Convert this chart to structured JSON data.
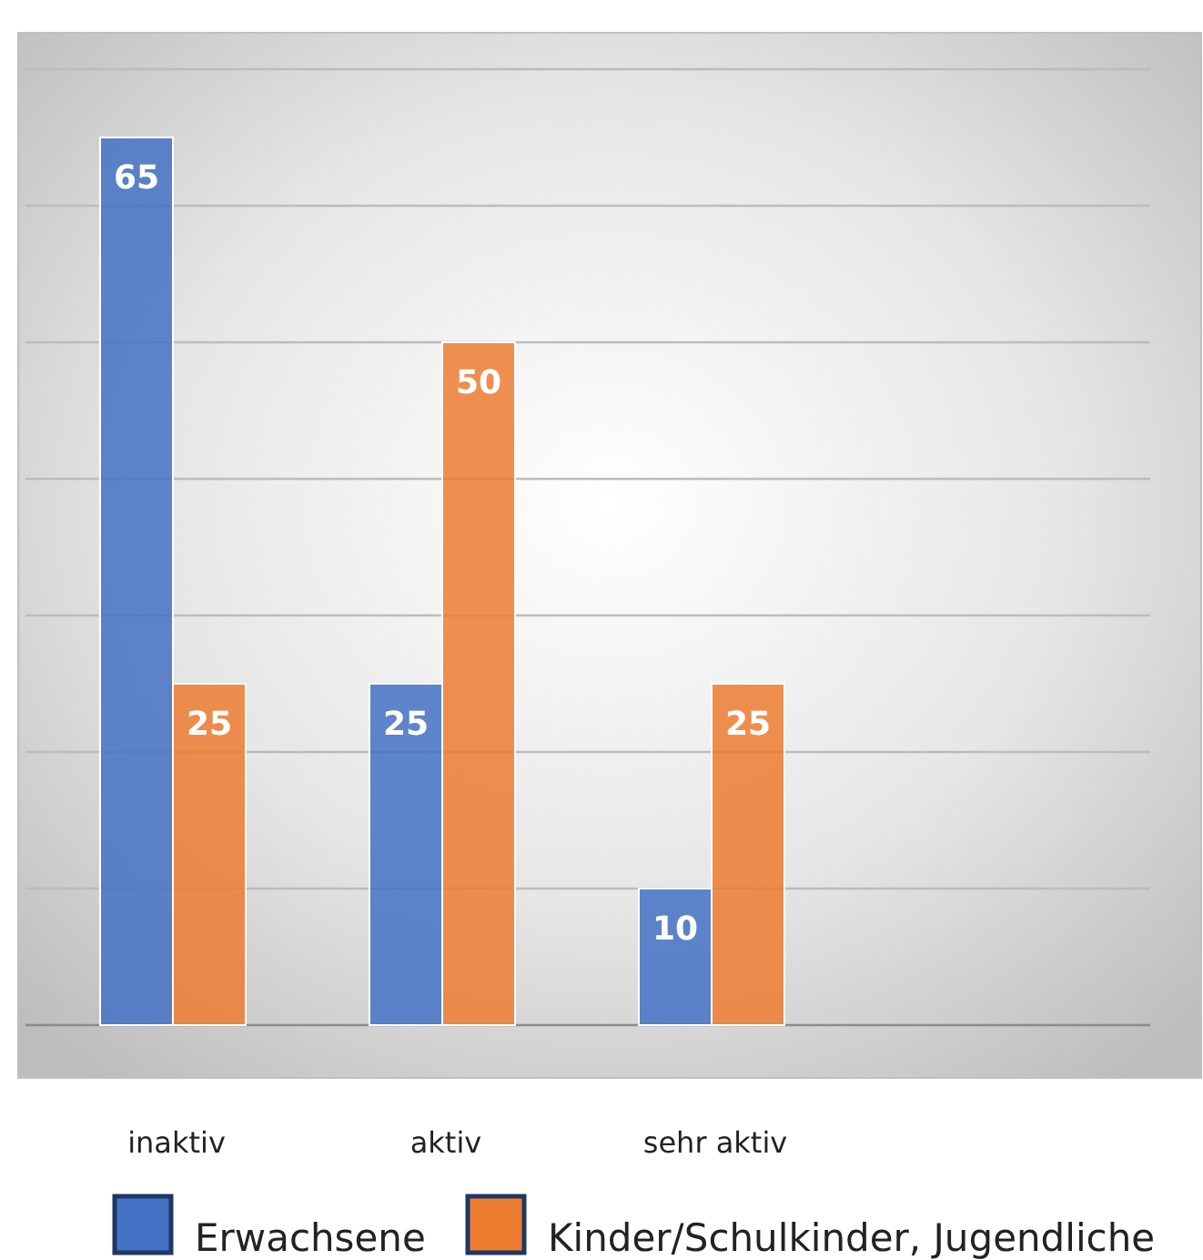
{
  "chart_data": {
    "type": "bar",
    "categories": [
      "inaktiv",
      "aktiv",
      "sehr aktiv",
      null
    ],
    "series": [
      {
        "name": "Erwachsene",
        "color": "#4472c4",
        "values": [
          65,
          25,
          10,
          null
        ]
      },
      {
        "name": "Kinder/Schulkinder, Jugendliche",
        "color": "#ed7d31",
        "values": [
          25,
          50,
          25,
          null
        ]
      }
    ],
    "ylim": [
      0,
      70
    ],
    "yticks": [
      {
        "value": 0,
        "label": null
      },
      {
        "value": 10,
        "label": null
      },
      {
        "value": 20,
        "label": null
      },
      {
        "value": 30,
        "label": null
      },
      {
        "value": 40,
        "label": null
      },
      {
        "value": 50,
        "label": null
      },
      {
        "value": 60,
        "label": null
      },
      {
        "value": 70,
        "label": null
      }
    ],
    "grid": "y",
    "data_labels": true,
    "legend": "bottom"
  }
}
